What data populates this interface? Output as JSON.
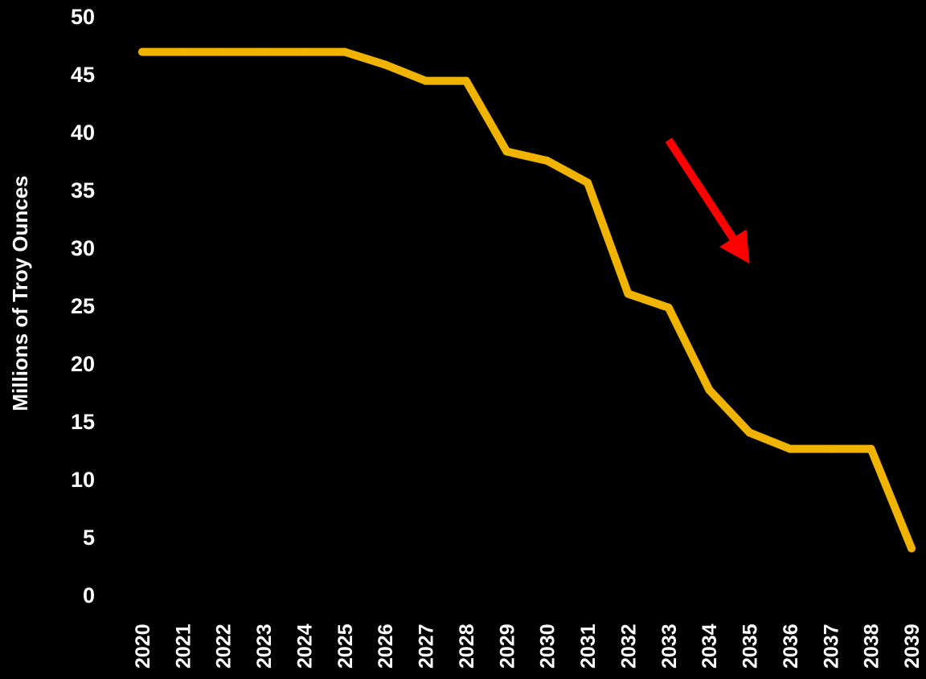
{
  "chart_data": {
    "type": "line",
    "title": "",
    "xlabel": "",
    "ylabel": "Millions of Troy Ounces",
    "categories": [
      "2020",
      "2021",
      "2022",
      "2023",
      "2024",
      "2025",
      "2026",
      "2027",
      "2028",
      "2029",
      "2030",
      "2031",
      "2032",
      "2033",
      "2034",
      "2035",
      "2036",
      "2037",
      "2038",
      "2039"
    ],
    "yticks": [
      "0",
      "5",
      "10",
      "15",
      "20",
      "25",
      "30",
      "35",
      "40",
      "45",
      "50"
    ],
    "ylim": [
      0,
      50
    ],
    "grid": false,
    "legend": "none",
    "series": [
      {
        "values": [
          46.9,
          46.9,
          46.9,
          46.9,
          46.9,
          46.9,
          45.8,
          44.4,
          44.4,
          38.3,
          37.5,
          35.6,
          26.0,
          24.8,
          17.7,
          14.0,
          12.6,
          12.6,
          12.6,
          4.0
        ],
        "color": "#f0b400"
      }
    ],
    "annotations": [
      {
        "kind": "arrow",
        "direction": "down-right",
        "color": "#ff0000",
        "from": [
          "2033",
          39.3
        ],
        "to": [
          "2035",
          28.6
        ]
      }
    ],
    "colors": {
      "background": "#000000",
      "text": "#ffffff",
      "line": "#f0b400",
      "arrow": "#ff0000"
    }
  }
}
